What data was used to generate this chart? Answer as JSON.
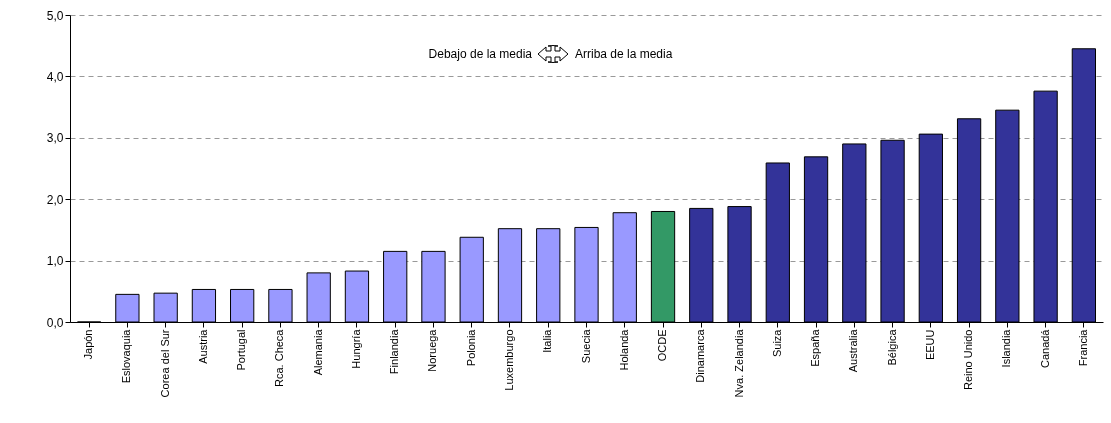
{
  "chart_data": {
    "type": "bar",
    "categories": [
      "Japón",
      "Eslovaquia",
      "Corea del Sur",
      "Austria",
      "Portugal",
      "Rca. Checa",
      "Alemania",
      "Hungría",
      "Finlandia",
      "Noruega",
      "Polonia",
      "Luxemburgo",
      "Italia",
      "Suecia",
      "Holanda",
      "OCDE",
      "Dinamarca",
      "Nva. Zelandia",
      "Suiza",
      "España",
      "Australia",
      "Bélgica",
      "EEUU",
      "Reino Unido",
      "Islandia",
      "Canadá",
      "Francia"
    ],
    "values": [
      0,
      0.45,
      0.47,
      0.53,
      0.53,
      0.53,
      0.8,
      0.83,
      1.15,
      1.15,
      1.38,
      1.52,
      1.52,
      1.54,
      1.78,
      1.8,
      1.85,
      1.88,
      2.59,
      2.69,
      2.9,
      2.96,
      3.06,
      3.31,
      3.45,
      3.76,
      4.45
    ],
    "colors": [
      "#9999ff",
      "#9999ff",
      "#9999ff",
      "#9999ff",
      "#9999ff",
      "#9999ff",
      "#9999ff",
      "#9999ff",
      "#9999ff",
      "#9999ff",
      "#9999ff",
      "#9999ff",
      "#9999ff",
      "#9999ff",
      "#9999ff",
      "#339966",
      "#333399",
      "#333399",
      "#333399",
      "#333399",
      "#333399",
      "#333399",
      "#333399",
      "#333399",
      "#333399",
      "#333399",
      "#333399"
    ],
    "ylim": [
      0,
      5
    ],
    "yticks": [
      {
        "value": 0,
        "label": "0,0"
      },
      {
        "value": 1,
        "label": "1,0"
      },
      {
        "value": 2,
        "label": "2,0"
      },
      {
        "value": 3,
        "label": "3,0"
      },
      {
        "value": 4,
        "label": "4,0"
      },
      {
        "value": 5,
        "label": "5,0"
      }
    ],
    "grid": "y",
    "annotations": [
      "Debajo de la media",
      "Arriba de la media"
    ]
  }
}
